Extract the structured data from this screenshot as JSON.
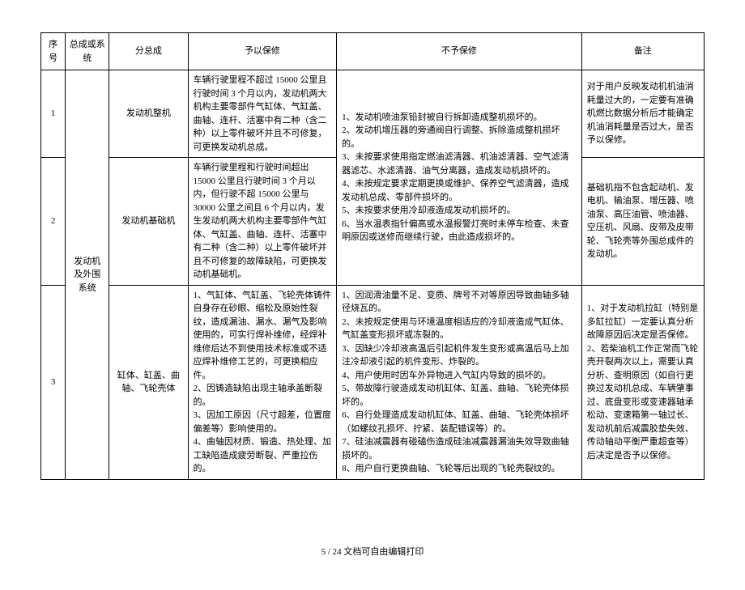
{
  "headers": {
    "seq": "序号",
    "system": "总成或系统",
    "sub": "分总成",
    "warranty": "予以保修",
    "no_warranty": "不予保修",
    "remark": "备注"
  },
  "system_name": "发动机及外围系统",
  "rows": [
    {
      "seq": "1",
      "sub": "发动机整机",
      "warranty": "车辆行驶里程不超过 15000 公里且行驶时间 3 个月以内，发动机两大机构主要零部件气缸体、气缸盖、曲轴、连杆、活塞中有二种（含二种）以上零件破坏并且不可修复，可更换发动机总成。",
      "no_warranty": "1、发动机喷油泵铅封被自行拆卸造成整机损坏的。\n2、发动机增压器的旁通阀自行调整、拆除造成整机损坏的。\n3、未按要求使用指定燃油滤清器、机油滤清器、空气滤清器滤芯、水滤清器、油气分离器，造成发动机损坏的。\n4、未按规定要求定期更换或维护、保养空气滤清器，造成发动机总成、零部件损坏的。\n5、未按要求使用冷却液造成发动机损坏的。\n6、当水温表指针偏高或水温报警灯亮时未停车检查、未查明原因或送修而继续行驶，由此造成损坏的。",
      "remark": "对于用户反映发动机机油消耗量过大的，一定要有准确机燃比数据分析后才能确定机油消耗量是否过大，是否予以保修。"
    },
    {
      "seq": "2",
      "sub": "发动机基础机",
      "warranty": "车辆行驶里程和行驶时间超出 15000 公里且行驶时间 3 个月以内，但行驶不超 15000 公里与 30000 公里之间且 6 个月以内，发生发动机两大机构主要零部件气缸体、气缸盖、曲轴、连杆、活塞中有二种（含二种）以上零件破坏并且不可修复的故障缺陷，可更换发动机基础机。",
      "no_warranty": "",
      "remark": "基础机指不包含起动机、发电机、输油泵、增压器、喷油泵、高压油管、喷油器、空压机、风扇、皮带及皮带轮、飞轮壳等外围总成件的发动机。"
    },
    {
      "seq": "3",
      "sub": "缸体、缸盖、曲轴、飞轮壳体",
      "warranty": "1、气缸体、气缸盖、飞轮壳体铸件自身存在砂眼、缩松及原始性裂纹，造成漏油、漏水、漏气及影响使用的，可实行焊补维修，经焊补维修后达不到使用技术标准或不适应焊补维修工艺的，可更换相应件。\n2、因铸造缺陷出现主轴承盖断裂的。\n3、因加工原因（尺寸超差，位置度偏差等）影响使用的。\n4、曲轴因材质、锻造、热处理、加工缺陷造成疲劳断裂、严重拉伤的。",
      "no_warranty": "1、因润滑油量不足、变质、牌号不对等原因导致曲轴多轴径烧瓦的。\n2、未按规定使用与环境温度相适应的冷却液造成气缸体、气缸盖变形损坏或冻裂的。\n3、因缺少冷却液高温后引起机件发生变形或高温后马上加注冷却液引起的机件变形、炸裂的。\n4、用户使用时因车外异物进入气缸内导致的损坏的。\n5、带故障行驶造成发动机缸体、缸盖、曲轴、飞轮壳体损坏的。\n6、自行处理造成发动机缸体、缸盖、曲轴、飞轮壳体损坏（如螺纹孔损坏、拧紧、装配错误等）的。\n7、硅油减震器有碰磕伤造成硅油减震器漏油失效导致曲轴损坏的。\n8、用户自行更换曲轴、飞轮等后出现的飞轮壳裂纹的。",
      "remark": "1、对于发动机拉缸（特别是多缸拉缸）一定要认真分析故障原因后决定是否保修。\n2、若柴油机工作正常而飞轮壳开裂两次以上，需要认真分析、查明原因（如自行更换过发动机总成、车辆肇事过、底盘变形或变速器轴承松动、变速箱第一轴过长、发动机前后减震胶垫失效、传动轴动平衡严重超查等）后决定是否予以保修。"
    }
  ],
  "footer": "5 / 24 文档可自由编辑打印"
}
